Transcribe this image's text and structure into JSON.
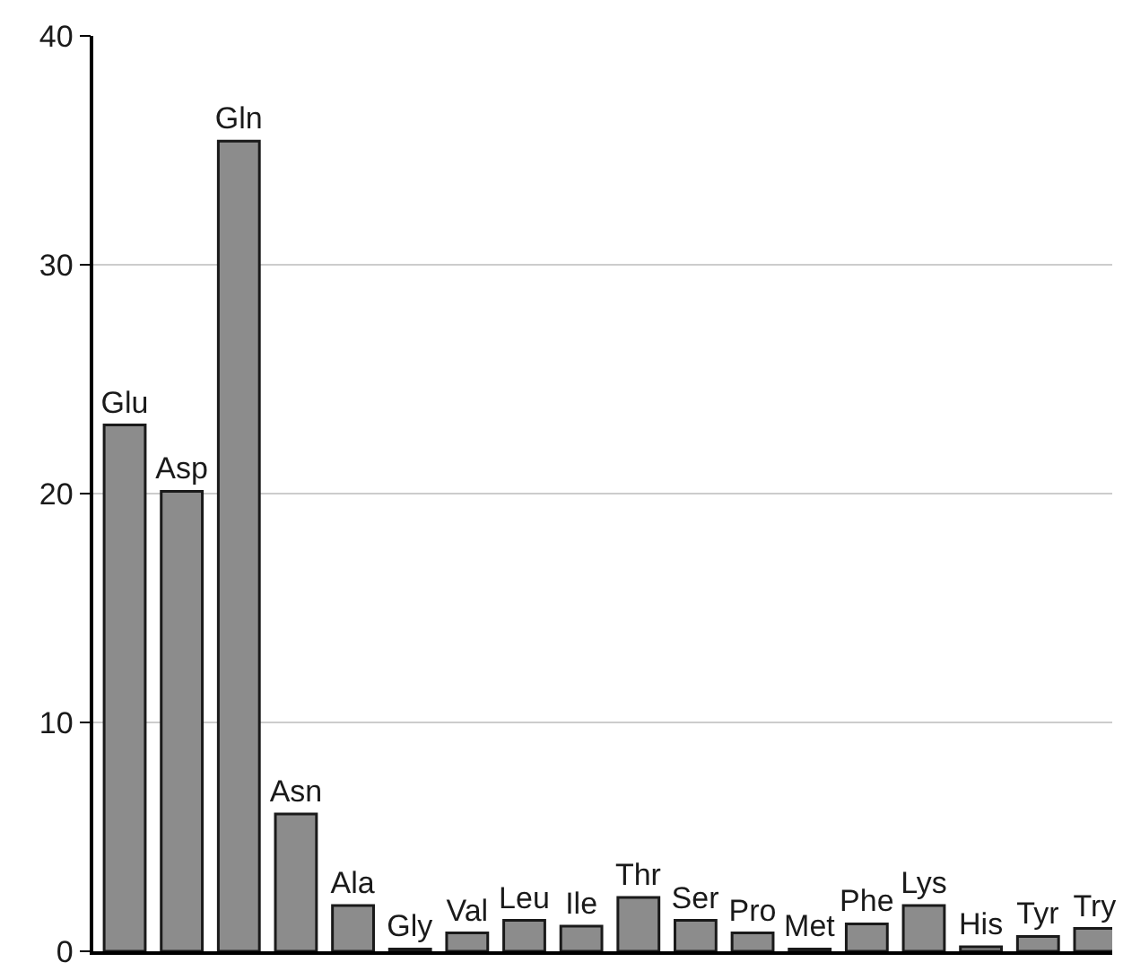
{
  "chart_data": {
    "type": "bar",
    "categories": [
      "Glu",
      "Asp",
      "Gln",
      "Asn",
      "Ala",
      "Gly",
      "Val",
      "Leu",
      "Ile",
      "Thr",
      "Ser",
      "Pro",
      "Met",
      "Phe",
      "Lys",
      "His",
      "Tyr",
      "Try"
    ],
    "values": [
      23.0,
      20.1,
      35.4,
      6.0,
      2.0,
      0.1,
      0.8,
      1.35,
      1.1,
      2.35,
      1.35,
      0.8,
      0.1,
      1.2,
      2.0,
      0.2,
      0.65,
      1.0
    ],
    "color": "#8c8c8c",
    "ylim": [
      0,
      40
    ],
    "yticks": [
      0,
      10,
      20,
      30,
      40
    ],
    "grid": "y",
    "legend": false,
    "tick_labels": "y"
  }
}
